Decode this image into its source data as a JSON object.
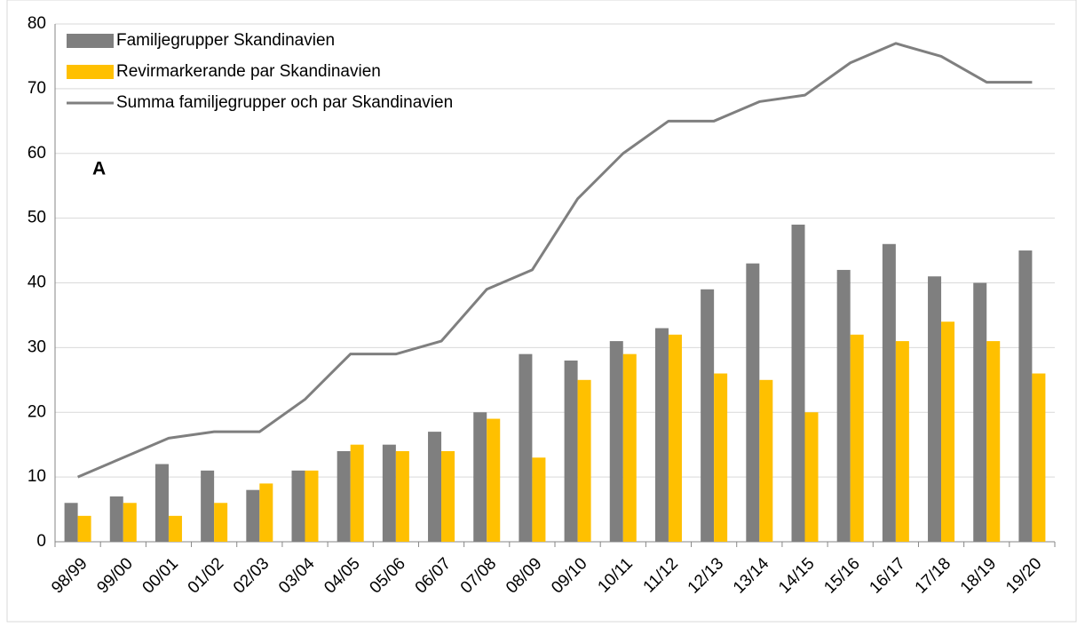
{
  "chart_data": {
    "type": "bar",
    "annotation": "A",
    "categories": [
      "98/99",
      "99/00",
      "00/01",
      "01/02",
      "02/03",
      "03/04",
      "04/05",
      "05/06",
      "06/07",
      "07/08",
      "08/09",
      "09/10",
      "10/11",
      "11/12",
      "12/13",
      "13/14",
      "14/15",
      "15/16",
      "16/17",
      "17/18",
      "18/19",
      "19/20"
    ],
    "series": [
      {
        "name": "Familjegrupper Skandinavien",
        "type": "bar",
        "color": "#7f7f7f",
        "values": [
          6,
          7,
          12,
          11,
          8,
          11,
          14,
          15,
          17,
          20,
          29,
          28,
          31,
          33,
          39,
          43,
          49,
          42,
          46,
          41,
          40,
          45
        ]
      },
      {
        "name": "Revirmarkerande par Skandinavien",
        "type": "bar",
        "color": "#ffc000",
        "values": [
          4,
          6,
          4,
          6,
          9,
          11,
          15,
          14,
          14,
          19,
          13,
          25,
          29,
          32,
          26,
          25,
          20,
          32,
          31,
          34,
          31,
          26
        ]
      },
      {
        "name": "Summa familjegrupper och par Skandinavien",
        "type": "line",
        "color": "#7f7f7f",
        "values": [
          10,
          13,
          16,
          17,
          17,
          22,
          29,
          29,
          31,
          39,
          42,
          53,
          60,
          65,
          65,
          68,
          69,
          74,
          77,
          75,
          71,
          71
        ]
      }
    ],
    "ylim": [
      0,
      80
    ],
    "yticks": [
      0,
      10,
      20,
      30,
      40,
      50,
      60,
      70,
      80
    ],
    "grid": true
  }
}
